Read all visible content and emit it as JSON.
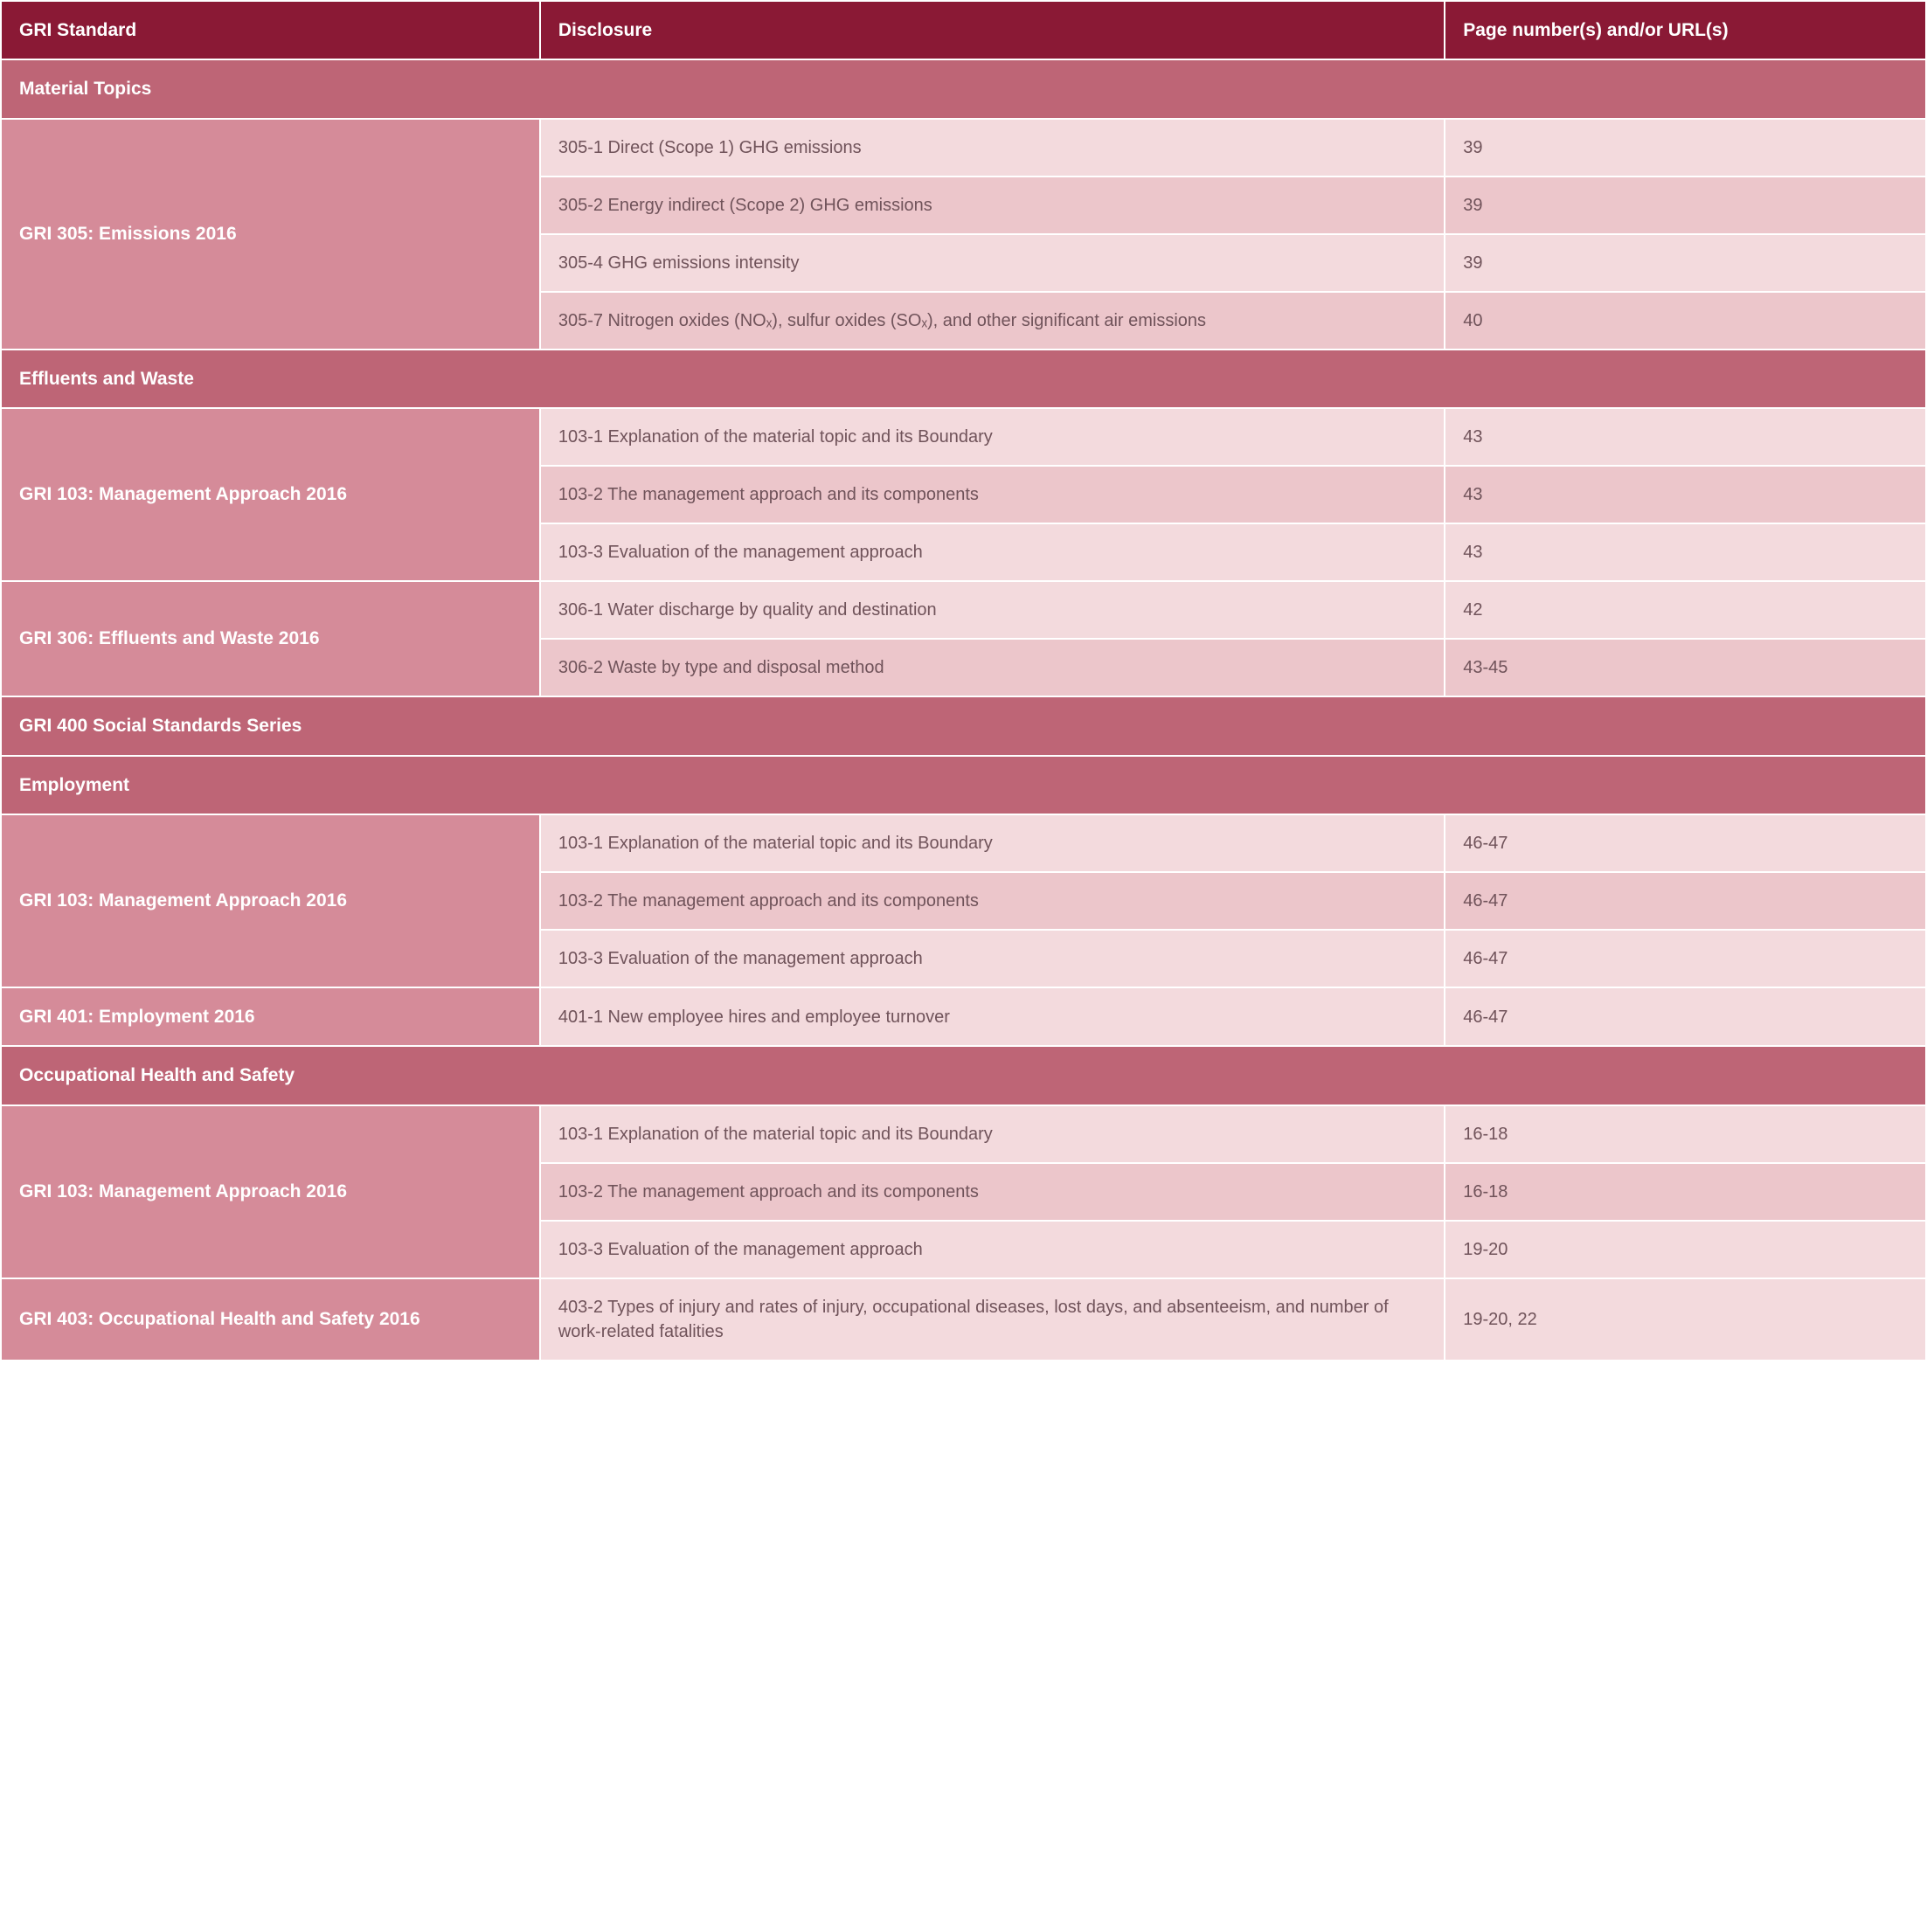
{
  "colors": {
    "header_bg": "#8a1935",
    "section_bg": "#be6576",
    "standard_bg": "#d58b99",
    "row_light": "#f3dadd",
    "row_dark": "#ecc6cb",
    "text_white": "#ffffff",
    "text_body": "#70535a",
    "border": "#ffffff"
  },
  "typography": {
    "header_fontsize": 21,
    "body_fontsize": 20,
    "header_weight": 600,
    "body_weight": 400
  },
  "layout": {
    "col_widths": [
      "28%",
      "47%",
      "25%"
    ],
    "cell_padding": "18px 20px",
    "border_width": 2
  },
  "header": {
    "col1": "GRI Standard",
    "col2": "Disclosure",
    "col3": "Page number(s) and/or URL(s)"
  },
  "sections": [
    {
      "title": "Material Topics",
      "groups": [
        {
          "standard": "GRI 305: Emissions 2016",
          "rows": [
            {
              "disclosure": "305-1 Direct (Scope 1) GHG emissions",
              "page": "39"
            },
            {
              "disclosure": "305-2 Energy indirect (Scope 2) GHG emissions",
              "page": "39"
            },
            {
              "disclosure": "305-4 GHG emissions intensity",
              "page": "39"
            },
            {
              "disclosure": "305-7 Nitrogen oxides (NOₓ), sulfur oxides (SOₓ), and other significant air emissions",
              "page": "40"
            }
          ]
        }
      ]
    },
    {
      "title": "Effluents and Waste",
      "groups": [
        {
          "standard": "GRI 103: Management Approach 2016",
          "rows": [
            {
              "disclosure": "103-1 Explanation of the material topic and its Boundary",
              "page": "43"
            },
            {
              "disclosure": "103-2 The management approach and its components",
              "page": "43"
            },
            {
              "disclosure": "103-3 Evaluation of the management approach",
              "page": "43"
            }
          ]
        },
        {
          "standard": "GRI 306: Effluents and Waste 2016",
          "rows": [
            {
              "disclosure": "306-1 Water discharge by quality and destination",
              "page": "42"
            },
            {
              "disclosure": "306-2 Waste by type and disposal method",
              "page": "43-45"
            }
          ]
        }
      ]
    },
    {
      "series_title": "GRI 400 Social Standards Series",
      "title": "Employment",
      "groups": [
        {
          "standard": "GRI 103: Management Approach 2016",
          "rows": [
            {
              "disclosure": "103-1 Explanation of the material topic and its Boundary",
              "page": "46-47"
            },
            {
              "disclosure": "103-2 The management approach and its components",
              "page": "46-47"
            },
            {
              "disclosure": "103-3 Evaluation of the management approach",
              "page": "46-47"
            }
          ]
        },
        {
          "standard": "GRI 401: Employment 2016",
          "rows": [
            {
              "disclosure": "401-1 New employee hires and employee turnover",
              "page": "46-47"
            }
          ]
        }
      ]
    },
    {
      "title": "Occupational Health and Safety",
      "groups": [
        {
          "standard": "GRI 103: Management Approach 2016",
          "rows": [
            {
              "disclosure": "103-1 Explanation of the material topic and its Boundary",
              "page": "16-18"
            },
            {
              "disclosure": "103-2 The management approach and its components",
              "page": "16-18"
            },
            {
              "disclosure": "103-3 Evaluation of the management approach",
              "page": "19-20"
            }
          ]
        },
        {
          "standard": "GRI 403: Occupational Health and Safety 2016",
          "rows": [
            {
              "disclosure": "403-2 Types of injury and rates of injury, occupational diseases, lost days, and absenteeism, and number of work-related fatalities",
              "page": "19-20, 22"
            }
          ]
        }
      ]
    }
  ]
}
